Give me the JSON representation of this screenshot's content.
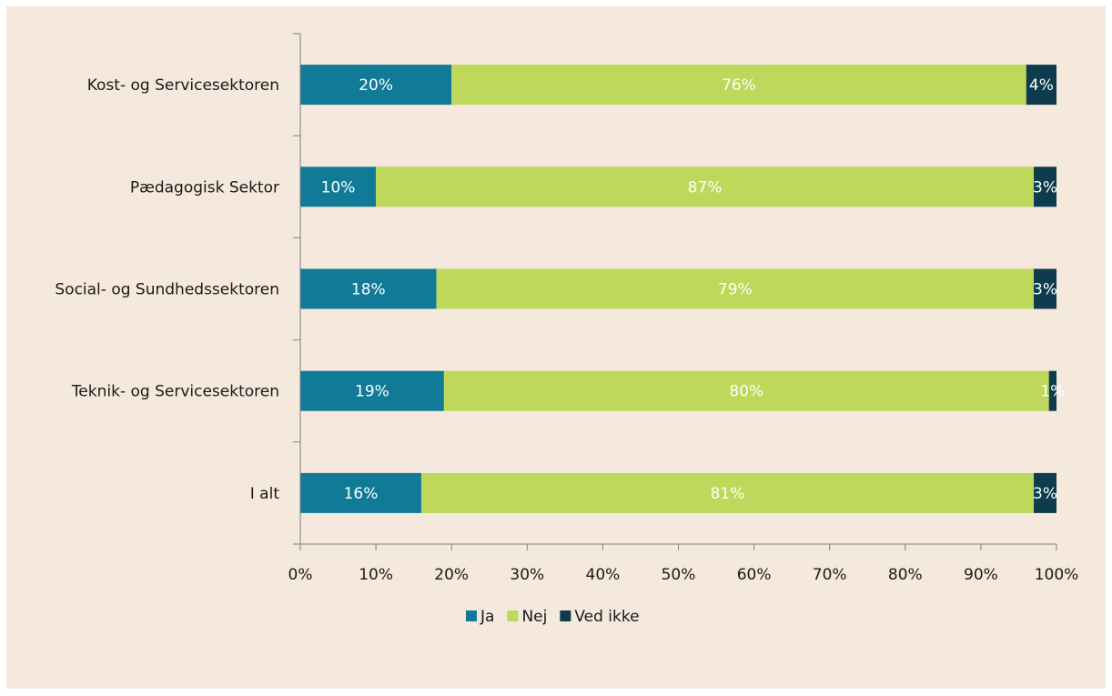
{
  "chart_data": {
    "type": "bar",
    "orientation": "horizontal",
    "stacked": "percent",
    "categories": [
      "Kost- og Servicesektoren",
      "Pædagogisk Sektor",
      "Social- og Sundhedssektoren",
      "Teknik- og Servicesektoren",
      "I alt"
    ],
    "series": [
      {
        "name": "Ja",
        "color": "#117a97",
        "values": [
          20,
          10,
          18,
          19,
          16
        ],
        "labels": [
          "20%",
          "10%",
          "18%",
          "19%",
          "16%"
        ]
      },
      {
        "name": "Nej",
        "color": "#bdd85a",
        "values": [
          76,
          87,
          79,
          80,
          81
        ],
        "labels": [
          "76%",
          "87%",
          "79%",
          "80%",
          "81%"
        ]
      },
      {
        "name": "Ved ikke",
        "color": "#0e3b4d",
        "values": [
          4,
          3,
          3,
          1,
          3
        ],
        "labels": [
          "4%",
          "3%",
          "3%",
          "1%",
          "3%"
        ]
      }
    ],
    "xlim": [
      0,
      100
    ],
    "xticks": [
      "0%",
      "10%",
      "20%",
      "30%",
      "40%",
      "50%",
      "60%",
      "70%",
      "80%",
      "90%",
      "100%"
    ],
    "legend": "bottom",
    "grid": false
  }
}
